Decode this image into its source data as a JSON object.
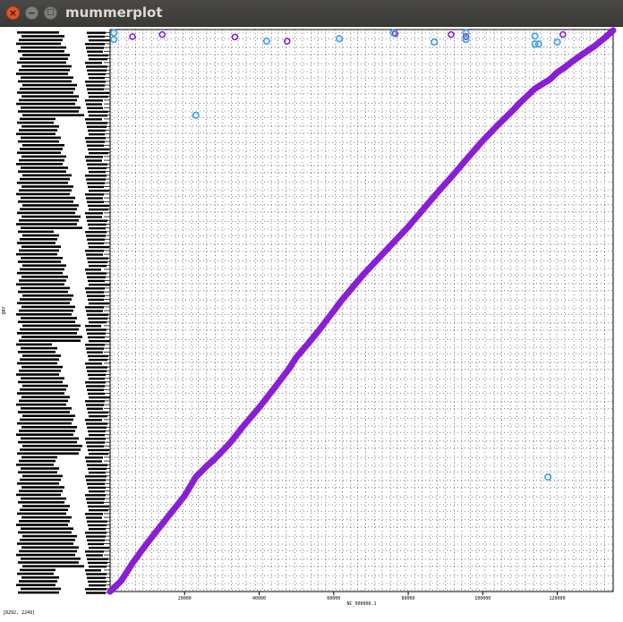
{
  "window": {
    "title": "mummerplot",
    "close_icon": "×",
    "minimize_icon": "−",
    "maximize_icon": "□"
  },
  "status_text": "[8292, 2249]",
  "colors": {
    "forward": "#8a1fd6",
    "reverse": "#4aa6e6",
    "grid": "#000000",
    "titlebar": "#3c3b37"
  },
  "chart_data": {
    "type": "scatter",
    "xlabel": "NC_000000.1",
    "ylabel": "QRY",
    "xlim": [
      0,
      135000
    ],
    "ylim": [
      0,
      135000
    ],
    "xticks": [
      20000,
      40000,
      60000,
      80000,
      100000,
      120000
    ],
    "xtick_labels": [
      "20000",
      "40000",
      "60000",
      "80000",
      "100000",
      "120000"
    ],
    "grid": true,
    "series": [
      {
        "key": "forward",
        "x": [
          0,
          3000,
          6000,
          9000,
          12000,
          16000,
          20000,
          23000,
          26000,
          28000,
          32000,
          36000,
          40000,
          44000,
          48000,
          50000,
          53000,
          56000,
          60000,
          62000,
          65000,
          68000,
          72000,
          76000,
          80000,
          84000,
          88000,
          92000,
          96000,
          100000,
          104000,
          108000,
          110000,
          114000,
          118000,
          120000,
          122000,
          124000,
          127000,
          130000,
          133000,
          135000
        ],
        "y": [
          0,
          2600,
          6800,
          10500,
          14000,
          18500,
          23000,
          27500,
          30200,
          31800,
          35500,
          40000,
          44200,
          48800,
          53500,
          56300,
          59400,
          62700,
          67400,
          69800,
          73000,
          76200,
          80000,
          83800,
          87600,
          91800,
          96000,
          100000,
          104200,
          108300,
          112000,
          115500,
          117400,
          120800,
          123000,
          124700,
          125900,
          127300,
          129200,
          131000,
          133200,
          134800
        ]
      },
      {
        "key": "forward-repeats",
        "x": [
          6000,
          14000,
          33500,
          47500,
          76500,
          91500,
          95500,
          121500
        ],
        "y": [
          133300,
          133800,
          133200,
          132200,
          134000,
          133800,
          133300,
          133800
        ]
      },
      {
        "key": "reverse-repeats",
        "x": [
          1000,
          1000,
          23000,
          42000,
          61500,
          76000,
          87000,
          95500,
          95500,
          114000,
          114000,
          115000,
          120000,
          117500
        ],
        "y": [
          134200,
          132600,
          114400,
          132200,
          132800,
          134200,
          132000,
          134200,
          132600,
          133400,
          131500,
          131500,
          132000,
          27500
        ]
      }
    ]
  }
}
